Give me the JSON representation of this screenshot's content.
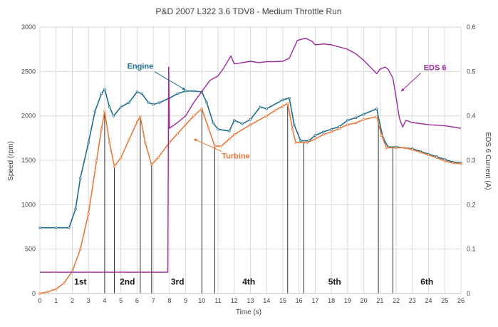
{
  "chart_data": {
    "type": "line",
    "title": "P&D  2007 L322 3.6 TDV8  -  Medium Throttle Run",
    "xlabel": "Time (s)",
    "ylabel": "Speed (rpm)",
    "y2label": "EDS 6 Current (A)",
    "xlim": [
      0,
      26
    ],
    "ylim": [
      0,
      3000
    ],
    "y2lim": [
      0,
      0.6
    ],
    "x_ticks": [
      "0",
      "1",
      "2",
      "3",
      "4",
      "5",
      "6",
      "7",
      "8",
      "9",
      "10",
      "11",
      "12",
      "13",
      "14",
      "15",
      "16",
      "17",
      "18",
      "19",
      "20",
      "21",
      "22",
      "23",
      "24",
      "25",
      "26"
    ],
    "y_ticks": [
      "0",
      "500",
      "1000",
      "1500",
      "2000",
      "2500",
      "3000"
    ],
    "y2_ticks": [
      "0",
      "0.1",
      "0.2",
      "0.3",
      "0.4",
      "0.5",
      "0.6"
    ],
    "grid": true,
    "colors": {
      "engine": "#1f6e8c",
      "turbine": "#e8793a",
      "eds6": "#9b2a9b",
      "grid": "#d9d9d9",
      "marker": "#000000"
    },
    "series": [
      {
        "name": "Engine",
        "axis": "left",
        "points": [
          [
            0,
            740
          ],
          [
            1,
            740
          ],
          [
            1.8,
            740
          ],
          [
            2.2,
            950
          ],
          [
            2.5,
            1300
          ],
          [
            3,
            1700
          ],
          [
            3.4,
            2050
          ],
          [
            3.8,
            2250
          ],
          [
            4.0,
            2300
          ],
          [
            4.3,
            2100
          ],
          [
            4.55,
            2000
          ],
          [
            5,
            2100
          ],
          [
            5.5,
            2150
          ],
          [
            6,
            2270
          ],
          [
            6.3,
            2250
          ],
          [
            6.7,
            2150
          ],
          [
            7,
            2130
          ],
          [
            7.4,
            2150
          ],
          [
            8,
            2200
          ],
          [
            8.5,
            2250
          ],
          [
            9,
            2280
          ],
          [
            9.5,
            2280
          ],
          [
            10,
            2270
          ],
          [
            10.3,
            2150
          ],
          [
            10.7,
            1920
          ],
          [
            11,
            1850
          ],
          [
            11.7,
            1830
          ],
          [
            12,
            1950
          ],
          [
            12.5,
            1910
          ],
          [
            13,
            1960
          ],
          [
            13.6,
            2100
          ],
          [
            14,
            2080
          ],
          [
            15,
            2180
          ],
          [
            15.4,
            2200
          ],
          [
            15.7,
            1900
          ],
          [
            16.1,
            1720
          ],
          [
            16.6,
            1720
          ],
          [
            17,
            1780
          ],
          [
            17.5,
            1820
          ],
          [
            18,
            1850
          ],
          [
            18.5,
            1880
          ],
          [
            19,
            1950
          ],
          [
            19.5,
            1980
          ],
          [
            20,
            2020
          ],
          [
            20.8,
            2080
          ],
          [
            21,
            1900
          ],
          [
            21.2,
            1750
          ],
          [
            21.5,
            1650
          ],
          [
            22,
            1650
          ],
          [
            22.5,
            1640
          ],
          [
            23,
            1630
          ],
          [
            23.5,
            1600
          ],
          [
            24,
            1570
          ],
          [
            24.5,
            1540
          ],
          [
            25,
            1510
          ],
          [
            25.5,
            1480
          ],
          [
            26,
            1470
          ]
        ]
      },
      {
        "name": "Turbine",
        "axis": "left",
        "points": [
          [
            0,
            0
          ],
          [
            0.5,
            20
          ],
          [
            1,
            50
          ],
          [
            1.5,
            120
          ],
          [
            2,
            250
          ],
          [
            2.5,
            500
          ],
          [
            3,
            900
          ],
          [
            3.5,
            1500
          ],
          [
            3.8,
            1850
          ],
          [
            4.0,
            2050
          ],
          [
            4.3,
            1700
          ],
          [
            4.6,
            1430
          ],
          [
            5,
            1530
          ],
          [
            5.5,
            1730
          ],
          [
            6,
            1930
          ],
          [
            6.2,
            1990
          ],
          [
            6.5,
            1700
          ],
          [
            6.9,
            1450
          ],
          [
            7.3,
            1530
          ],
          [
            8,
            1700
          ],
          [
            8.5,
            1800
          ],
          [
            9,
            1900
          ],
          [
            9.5,
            2000
          ],
          [
            10,
            2080
          ],
          [
            10.4,
            1870
          ],
          [
            10.8,
            1660
          ],
          [
            11.2,
            1660
          ],
          [
            11.7,
            1740
          ],
          [
            12,
            1790
          ],
          [
            13,
            1900
          ],
          [
            14,
            2000
          ],
          [
            14.5,
            2060
          ],
          [
            15,
            2110
          ],
          [
            15.3,
            2140
          ],
          [
            15.6,
            1850
          ],
          [
            15.8,
            1700
          ],
          [
            16.5,
            1700
          ],
          [
            17,
            1740
          ],
          [
            17.5,
            1790
          ],
          [
            18,
            1820
          ],
          [
            18.5,
            1860
          ],
          [
            19,
            1900
          ],
          [
            19.5,
            1920
          ],
          [
            20,
            1960
          ],
          [
            20.8,
            1990
          ],
          [
            21.1,
            1780
          ],
          [
            21.4,
            1640
          ],
          [
            22,
            1640
          ],
          [
            22.5,
            1640
          ],
          [
            23,
            1620
          ],
          [
            23.5,
            1590
          ],
          [
            24,
            1560
          ],
          [
            24.5,
            1530
          ],
          [
            25,
            1490
          ],
          [
            25.5,
            1470
          ],
          [
            26,
            1460
          ]
        ]
      },
      {
        "name": "EDS 6",
        "axis": "right",
        "points": [
          [
            0,
            0.048
          ],
          [
            7.9,
            0.048
          ],
          [
            7.95,
            0.51
          ],
          [
            8.0,
            0.372
          ],
          [
            8.5,
            0.385
          ],
          [
            9,
            0.4
          ],
          [
            9.5,
            0.43
          ],
          [
            10,
            0.455
          ],
          [
            10.5,
            0.48
          ],
          [
            11,
            0.49
          ],
          [
            11.3,
            0.505
          ],
          [
            11.8,
            0.535
          ],
          [
            12,
            0.517
          ],
          [
            12.5,
            0.52
          ],
          [
            13,
            0.523
          ],
          [
            13.5,
            0.52
          ],
          [
            14,
            0.522
          ],
          [
            14.5,
            0.522
          ],
          [
            15,
            0.523
          ],
          [
            15.4,
            0.53
          ],
          [
            15.9,
            0.57
          ],
          [
            16.4,
            0.575
          ],
          [
            16.8,
            0.568
          ],
          [
            17,
            0.56
          ],
          [
            17.5,
            0.562
          ],
          [
            18,
            0.56
          ],
          [
            18.5,
            0.555
          ],
          [
            19,
            0.55
          ],
          [
            19.5,
            0.54
          ],
          [
            20,
            0.525
          ],
          [
            20.4,
            0.51
          ],
          [
            20.8,
            0.495
          ],
          [
            21,
            0.505
          ],
          [
            21.3,
            0.51
          ],
          [
            21.5,
            0.505
          ],
          [
            21.8,
            0.485
          ],
          [
            22.0,
            0.44
          ],
          [
            22.2,
            0.395
          ],
          [
            22.4,
            0.375
          ],
          [
            22.6,
            0.39
          ],
          [
            23,
            0.385
          ],
          [
            24,
            0.38
          ],
          [
            25,
            0.378
          ],
          [
            26,
            0.372
          ]
        ]
      }
    ],
    "gear_markers": [
      4.0,
      4.6,
      6.2,
      6.9,
      10.0,
      10.8,
      15.3,
      16.3,
      20.9,
      21.8
    ],
    "gears": [
      {
        "label": "1st",
        "x": 2.5
      },
      {
        "label": "2nd",
        "x": 5.4
      },
      {
        "label": "3rd",
        "x": 8.5
      },
      {
        "label": "4th",
        "x": 12.9
      },
      {
        "label": "5th",
        "x": 18.2
      },
      {
        "label": "6th",
        "x": 23.9
      }
    ],
    "annotations": [
      {
        "label": "Engine",
        "x": 6.2,
        "y": 2530,
        "axis": "left",
        "arrow_to": [
          9.0,
          2290
        ]
      },
      {
        "label": "Turbine",
        "x": 12.1,
        "y": 1520,
        "axis": "left",
        "arrow_to": [
          9.5,
          1740
        ]
      },
      {
        "label": "EDS 6",
        "x": 24.4,
        "y": 0.503,
        "axis": "right",
        "arrow_to": [
          22.3,
          0.455
        ]
      }
    ]
  }
}
